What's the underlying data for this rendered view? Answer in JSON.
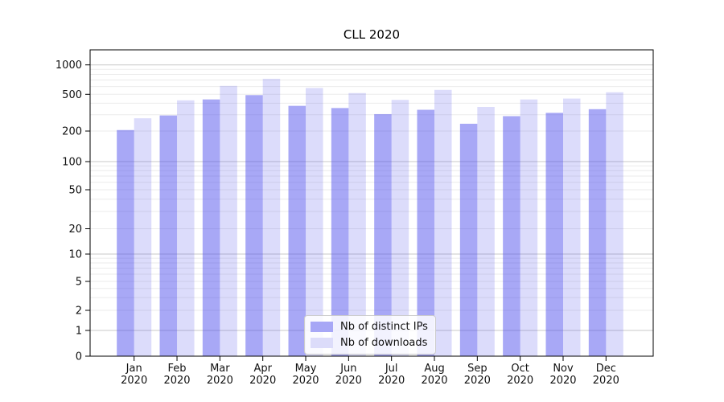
{
  "chart_data": {
    "type": "bar",
    "title": "CLL 2020",
    "xlabel": "",
    "ylabel": "",
    "yscale": "symlog",
    "grid": true,
    "legend_position": "lower center",
    "categories": [
      "Jan",
      "Feb",
      "Mar",
      "Apr",
      "May",
      "Jun",
      "Jul",
      "Aug",
      "Sep",
      "Oct",
      "Nov",
      "Dec"
    ],
    "category_year": "2020",
    "y_ticks": [
      0,
      1,
      2,
      5,
      10,
      20,
      50,
      100,
      200,
      500,
      1000
    ],
    "ylim": [
      0,
      1400
    ],
    "series": [
      {
        "name": "Nb of distinct IPs",
        "color": "rgba(70,70,235,0.47)",
        "swatch_color": "#a7a7f6",
        "values": [
          205,
          295,
          440,
          490,
          375,
          355,
          305,
          340,
          240,
          290,
          315,
          345
        ]
      },
      {
        "name": "Nb of downloads",
        "color": "rgba(70,70,235,0.19)",
        "swatch_color": "#dcdcfa",
        "values": [
          275,
          430,
          610,
          720,
          580,
          515,
          435,
          555,
          365,
          440,
          450,
          525
        ]
      }
    ],
    "colors": {
      "minor_grid": "#ebebeb",
      "major_grid": "#c9c9c9",
      "axis": "#000000",
      "tick_label": "#111111"
    }
  }
}
